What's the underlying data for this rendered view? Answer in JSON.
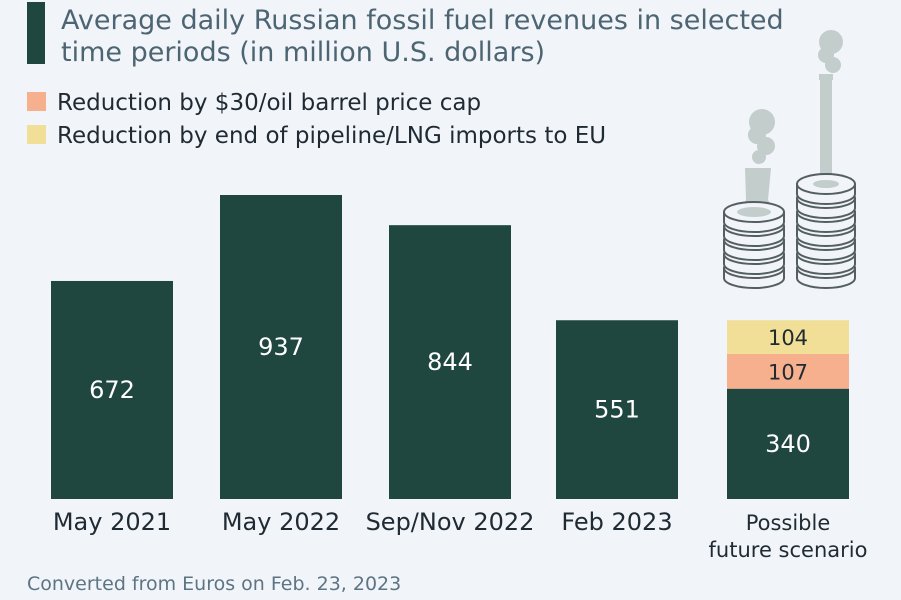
{
  "chart_data": {
    "type": "bar",
    "stacked": true,
    "title_lines": [
      "Average daily Russian fossil fuel revenues in selected",
      "time periods (in million U.S. dollars)"
    ],
    "legend": [
      {
        "label": "Reduction by $30/oil barrel price cap",
        "color": "#f7b08e"
      },
      {
        "label": "Reduction by end of pipeline/LNG imports to EU",
        "color": "#f1df97"
      }
    ],
    "categories": [
      {
        "lines": [
          "May 2021"
        ]
      },
      {
        "lines": [
          "May 2022"
        ]
      },
      {
        "lines": [
          "Sep/Nov 2022"
        ]
      },
      {
        "lines": [
          "Feb 2023"
        ]
      },
      {
        "lines": [
          "Possible",
          "future scenario"
        ]
      }
    ],
    "series": [
      {
        "values": [
          672,
          937,
          844,
          551,
          340
        ],
        "color": "#1f4740"
      },
      {
        "name": "Reduction by $30/oil barrel price cap",
        "values": [
          null,
          null,
          null,
          null,
          107
        ],
        "color": "#f7b08e"
      },
      {
        "name": "Reduction by end of pipeline/LNG imports to EU",
        "values": [
          null,
          null,
          null,
          null,
          104
        ],
        "color": "#f1df97"
      }
    ],
    "ylim": [
      0,
      1150
    ],
    "grid": false,
    "legend_placement": "top-left",
    "note": "Converted from Euros on Feb. 23, 2023"
  },
  "colors": {
    "background": "#f1f5f9",
    "bar": "#1f4740",
    "title_text": "#4d6572",
    "label_text": "#1f2a33",
    "note_text": "#5c7483",
    "illustration": "#c3cdcc"
  },
  "illustration_icon": "smokestack-coin-stacks-icon"
}
